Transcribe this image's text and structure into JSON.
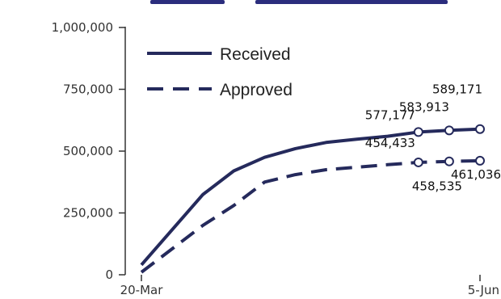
{
  "colors": {
    "series": "#252a5c",
    "axis": "#333333",
    "marker_fill": "#ffffff"
  },
  "chart_data": {
    "type": "line",
    "x_labels": [
      "20-Mar",
      "5-Jun"
    ],
    "x": [
      0,
      2,
      3,
      4,
      5,
      6,
      7,
      8,
      9,
      10,
      11
    ],
    "x_range": [
      0,
      11
    ],
    "y_ticks": [
      "0",
      "250,000",
      "500,000",
      "750,000",
      "1,000,000"
    ],
    "y_tick_values": [
      0,
      250000,
      500000,
      750000,
      1000000
    ],
    "ylim": [
      0,
      1000000
    ],
    "grid": false,
    "legend_position": "top-left",
    "series": [
      {
        "name": "Received",
        "style": "solid",
        "values": [
          40000,
          325000,
          420000,
          475000,
          510000,
          535000,
          548000,
          560000,
          577177,
          583913,
          589171
        ],
        "labels": [
          {
            "index": 8,
            "text": "577,177"
          },
          {
            "index": 9,
            "text": "583,913"
          },
          {
            "index": 10,
            "text": "589,171"
          }
        ]
      },
      {
        "name": "Approved",
        "style": "dashed",
        "values": [
          10000,
          200000,
          280000,
          375000,
          405000,
          425000,
          435000,
          445000,
          454433,
          458535,
          461036
        ],
        "labels": [
          {
            "index": 8,
            "text": "454,433"
          },
          {
            "index": 9,
            "text": "458,535"
          },
          {
            "index": 10,
            "text": "461,036"
          }
        ]
      }
    ]
  }
}
